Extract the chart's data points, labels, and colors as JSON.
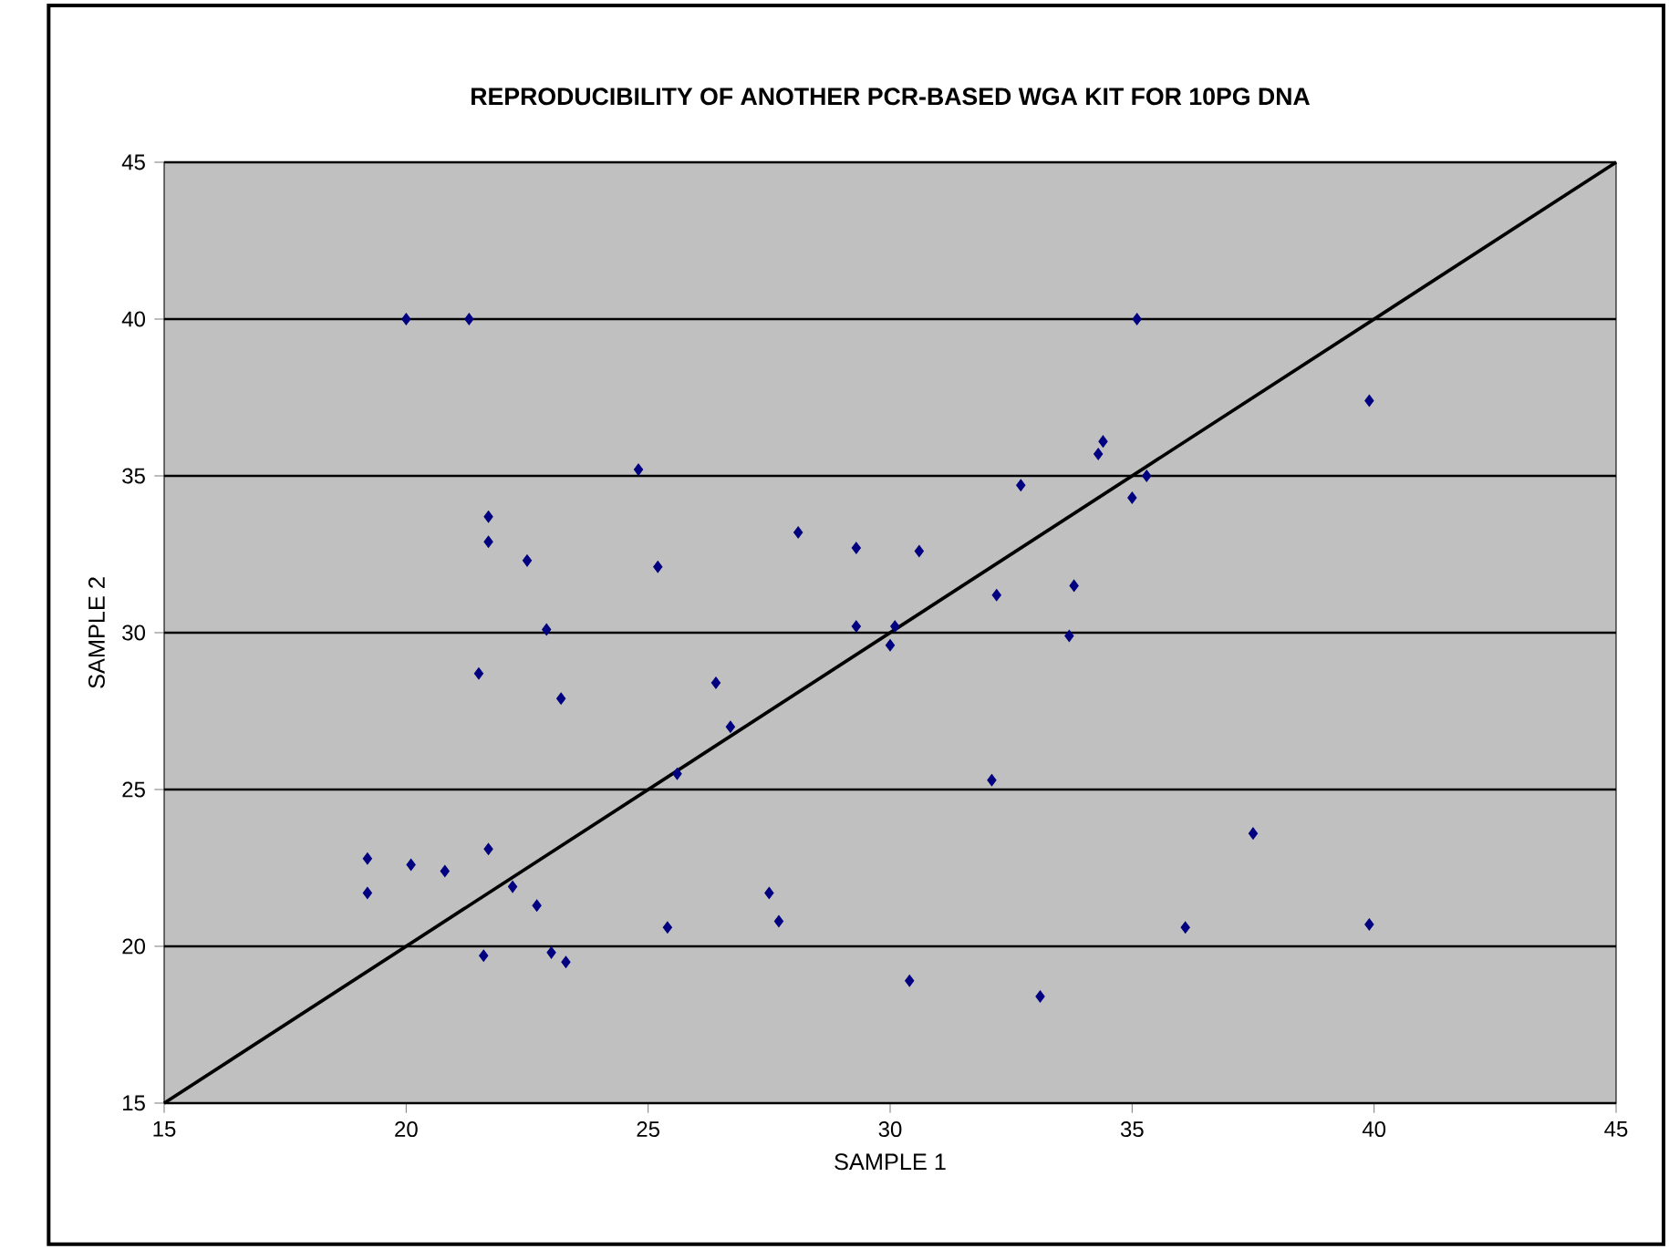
{
  "chart_data": {
    "type": "scatter",
    "title": "REPRODUCIBILITY OF ANOTHER PCR-BASED WGA KIT  FOR 10PG DNA",
    "xlabel": "SAMPLE 1",
    "ylabel": "SAMPLE 2",
    "xlim": [
      15,
      45
    ],
    "ylim": [
      15,
      45
    ],
    "xticks": [
      15,
      20,
      25,
      30,
      35,
      40,
      45
    ],
    "yticks": [
      15,
      20,
      25,
      30,
      35,
      40,
      45
    ],
    "grid": "y",
    "marker": "diamond",
    "series": [
      {
        "color": "#000080",
        "x": [
          20.0,
          21.3,
          35.1,
          24.8,
          21.7,
          21.7,
          22.5,
          25.2,
          22.9,
          21.5,
          23.2,
          26.4,
          26.7,
          25.6,
          19.2,
          19.2,
          20.1,
          20.8,
          21.7,
          22.2,
          22.7,
          21.6,
          23.0,
          23.3,
          25.4,
          27.5,
          27.7,
          28.1,
          29.3,
          29.3,
          30.1,
          30.0,
          30.6,
          30.4,
          32.7,
          32.2,
          32.1,
          33.1,
          33.8,
          33.7,
          34.3,
          34.4,
          35.0,
          35.3,
          36.1,
          37.5,
          39.9,
          39.9
        ],
        "values": [
          40.0,
          40.0,
          40.0,
          35.2,
          33.7,
          32.9,
          32.3,
          32.1,
          30.1,
          28.7,
          27.9,
          28.4,
          27.0,
          25.5,
          22.8,
          21.7,
          22.6,
          22.4,
          23.1,
          21.9,
          21.3,
          19.7,
          19.8,
          19.5,
          20.6,
          21.7,
          20.8,
          33.2,
          32.7,
          30.2,
          30.2,
          29.6,
          32.6,
          18.9,
          34.7,
          31.2,
          25.3,
          18.4,
          31.5,
          29.9,
          35.7,
          36.1,
          34.3,
          35.0,
          20.6,
          23.6,
          20.7,
          37.4
        ]
      },
      {
        "type": "line",
        "color": "#000000",
        "marker": "none",
        "x": [
          15,
          45
        ],
        "values": [
          15,
          45
        ]
      }
    ]
  }
}
